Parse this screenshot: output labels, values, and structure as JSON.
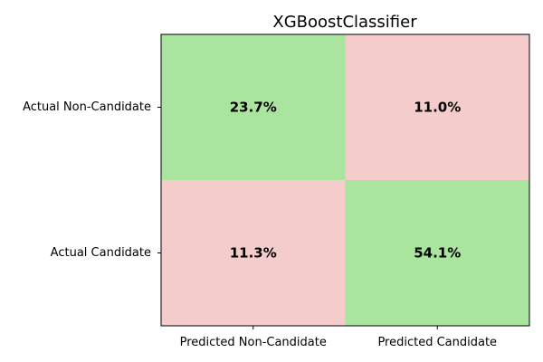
{
  "chart_data": {
    "type": "heatmap",
    "title": "XGBoostClassifier",
    "row_labels": [
      "Actual Non-Candidate",
      "Actual Candidate"
    ],
    "col_labels": [
      "Predicted Non-Candidate",
      "Predicted Candidate"
    ],
    "values": [
      [
        23.7,
        11.0
      ],
      [
        11.3,
        54.1
      ]
    ],
    "value_labels": [
      [
        "23.7%",
        "11.0%"
      ],
      [
        "11.3%",
        "54.1%"
      ]
    ],
    "cell_colors": [
      [
        "#aae5a0",
        "#f4cccc"
      ],
      [
        "#f4cccc",
        "#aae5a0"
      ]
    ],
    "colors": {
      "correct": "#aae5a0",
      "incorrect": "#f4cccc",
      "text": "#000000",
      "frame": "#000000"
    },
    "grid": false
  }
}
